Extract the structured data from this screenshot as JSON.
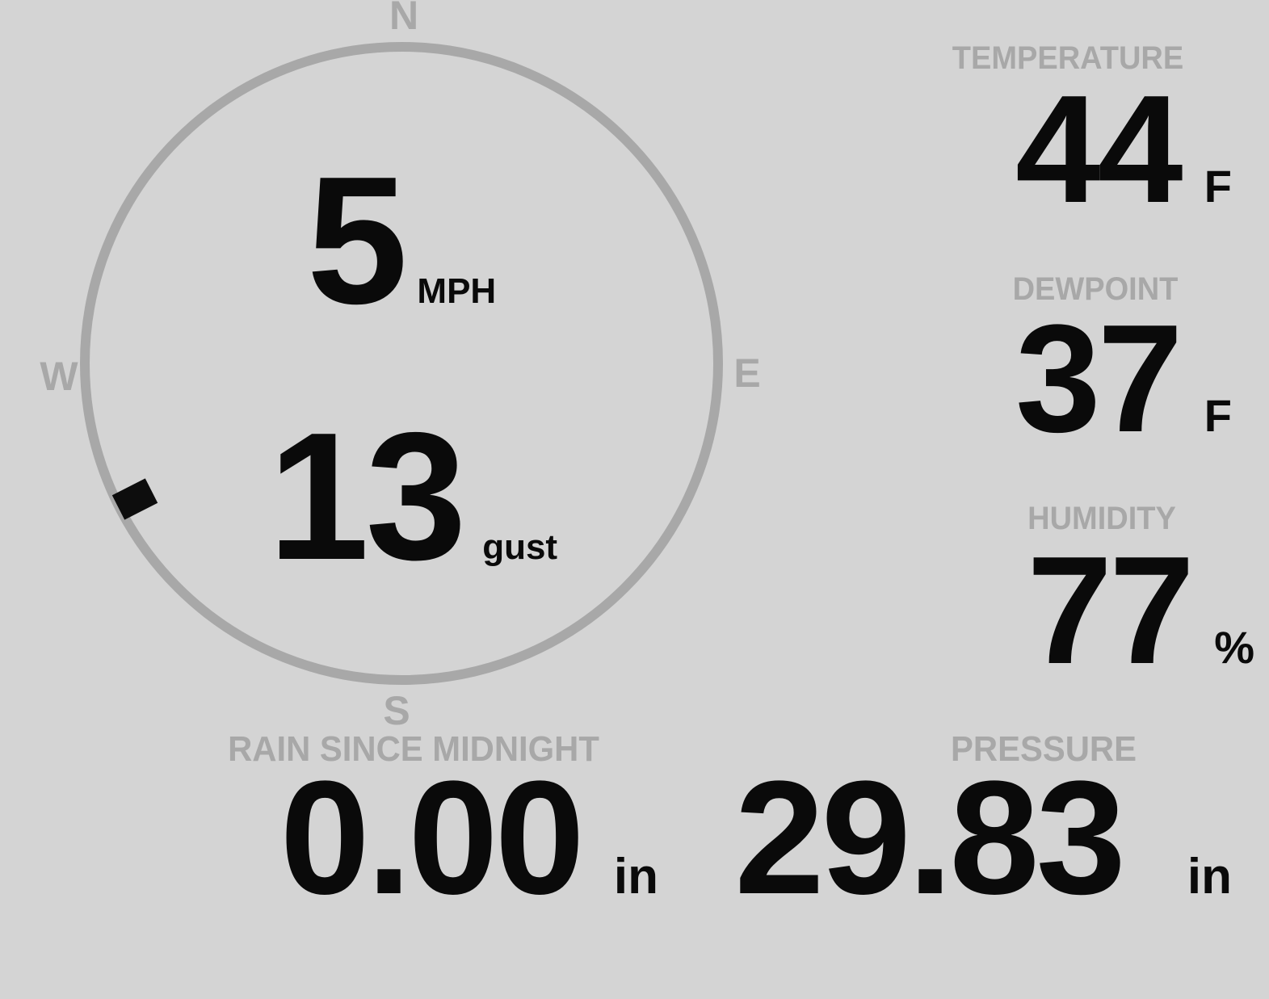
{
  "colors": {
    "background": "#d4d4d4",
    "muted_gray": "#a8a8a8",
    "ink": "#0a0a0a"
  },
  "compass": {
    "cardinals": {
      "north": "N",
      "east": "E",
      "south": "S",
      "west": "W"
    },
    "wind_speed": {
      "value": "5",
      "unit": "MPH"
    },
    "wind_gust": {
      "value": "13",
      "unit": "gust"
    },
    "wind_direction_deg": 243
  },
  "stats": {
    "temperature": {
      "label": "TEMPERATURE",
      "value": "44",
      "unit": "F"
    },
    "dewpoint": {
      "label": "DEWPOINT",
      "value": "37",
      "unit": "F"
    },
    "humidity": {
      "label": "HUMIDITY",
      "value": "77",
      "unit": "%"
    },
    "rain": {
      "label": "RAIN SINCE MIDNIGHT",
      "value": "0.00",
      "unit": "in"
    },
    "pressure": {
      "label": "PRESSURE",
      "value": "29.83",
      "unit": "in"
    }
  }
}
